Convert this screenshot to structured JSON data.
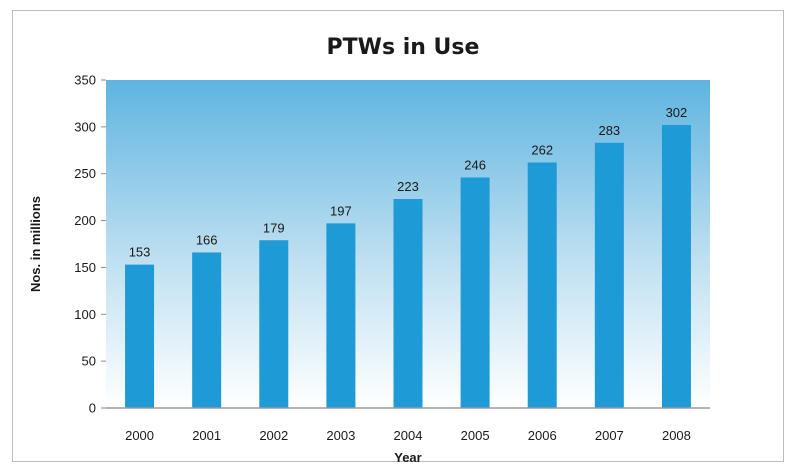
{
  "chart_data": {
    "type": "bar",
    "title": "PTWs in Use",
    "xlabel": "Year",
    "ylabel": "Nos. in millions",
    "categories": [
      "2000",
      "2001",
      "2002",
      "2003",
      "2004",
      "2005",
      "2006",
      "2007",
      "2008"
    ],
    "values": [
      153,
      166,
      179,
      197,
      223,
      246,
      262,
      283,
      302
    ],
    "ylim": [
      0,
      350
    ],
    "yticks": [
      0,
      50,
      100,
      150,
      200,
      250,
      300,
      350
    ],
    "grid": false,
    "legend": "none",
    "colors": {
      "bar": "#1e9ad6",
      "plot_top": "#5fb4e0",
      "plot_bottom": "#ffffff"
    }
  }
}
